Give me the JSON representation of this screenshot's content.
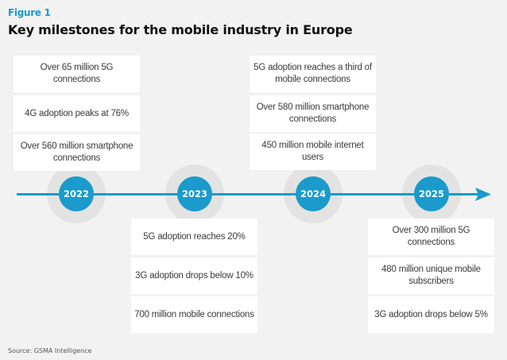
{
  "figure_label": "Figure 1",
  "title": "Key milestones for the mobile industry in Europe",
  "colors": {
    "accent": "#1a9bcc",
    "halo": "#e3e3e3",
    "background": "#f2f2f2",
    "box": "#ffffff"
  },
  "milestones": [
    {
      "year": "2022",
      "position": "above",
      "items": [
        "Over 65 million 5G connections",
        "4G adoption peaks at 76%",
        "Over 560 million smartphone connections"
      ]
    },
    {
      "year": "2023",
      "position": "below",
      "items": [
        "5G adoption reaches 20%",
        "3G adoption drops below 10%",
        "700 million mobile connections"
      ]
    },
    {
      "year": "2024",
      "position": "above",
      "items": [
        "5G adoption reaches a third of mobile connections",
        "Over 580 million smartphone connections",
        "450 million mobile internet users"
      ]
    },
    {
      "year": "2025",
      "position": "below",
      "items": [
        "Over 300 million 5G connections",
        "480 million unique mobile subscribers",
        "3G adoption drops below 5%"
      ]
    }
  ],
  "source": "Source: GSMA Intelligence"
}
